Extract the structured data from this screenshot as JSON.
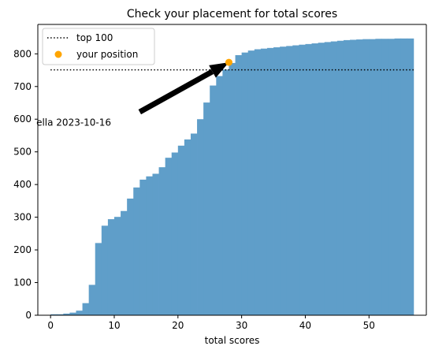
{
  "chart_data": {
    "type": "bar",
    "title": "Check your placement for total scores",
    "xlabel": "total scores",
    "ylabel": "",
    "xlim": [
      -2,
      59
    ],
    "ylim": [
      0,
      890
    ],
    "xticks": [
      0,
      10,
      20,
      30,
      40,
      50
    ],
    "yticks": [
      0,
      100,
      200,
      300,
      400,
      500,
      600,
      700,
      800
    ],
    "bar_color": "#5f9ec9",
    "bar_width": 1,
    "histogram": {
      "x": [
        0,
        1,
        2,
        3,
        4,
        5,
        6,
        7,
        8,
        9,
        10,
        11,
        12,
        13,
        14,
        15,
        16,
        17,
        18,
        19,
        20,
        21,
        22,
        23,
        24,
        25,
        26,
        27,
        28,
        29,
        30,
        31,
        32,
        33,
        34,
        35,
        36,
        37,
        38,
        39,
        40,
        41,
        42,
        43,
        44,
        45,
        46,
        47,
        48,
        49,
        50,
        51,
        52,
        53,
        54,
        55,
        56
      ],
      "values": [
        3,
        3,
        5,
        8,
        14,
        37,
        93,
        221,
        274,
        294,
        301,
        319,
        357,
        391,
        415,
        425,
        433,
        453,
        482,
        498,
        519,
        538,
        556,
        600,
        651,
        703,
        732,
        752,
        772,
        796,
        804,
        810,
        814,
        816,
        818,
        820,
        822,
        824,
        826,
        828,
        830,
        832,
        834,
        836,
        838,
        840,
        842,
        843,
        844,
        845,
        845,
        846,
        846,
        846,
        847,
        847,
        847
      ]
    },
    "series": [
      {
        "name": "top 100",
        "type": "line",
        "style": "dotted",
        "color": "#000000",
        "x": [
          0,
          57
        ],
        "y": [
          751,
          751
        ]
      },
      {
        "name": "your position",
        "type": "scatter",
        "color": "#ffa500",
        "x": [
          28
        ],
        "y": [
          774
        ]
      }
    ],
    "legend": {
      "position": "upper-left",
      "entries": [
        {
          "label": "top 100",
          "marker": "dotted-line"
        },
        {
          "label": "your position",
          "marker": "dot"
        }
      ]
    },
    "annotation": {
      "text": "ella 2023-10-16",
      "text_x": -1,
      "text_y": 590,
      "arrow_tail_x": 14,
      "arrow_tail_y": 622,
      "arrow_head_x": 28,
      "arrow_head_y": 774,
      "arrow_color": "#000000"
    },
    "grid": false
  }
}
